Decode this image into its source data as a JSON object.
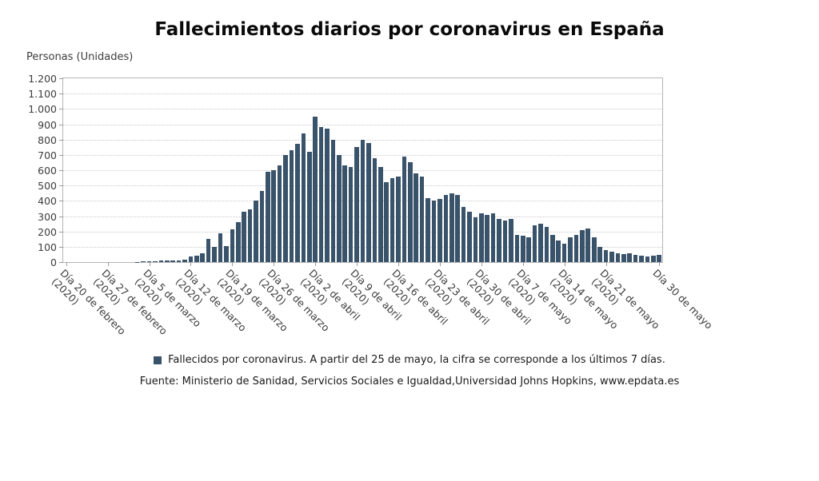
{
  "chart_data": {
    "type": "bar",
    "title": "Fallecimientos diarios por coronavirus en España",
    "ylabel": "Personas (Unidades)",
    "xlabel": "",
    "ylim": [
      0,
      1200
    ],
    "y_tick_step": 100,
    "y_tick_labels_top_down": [
      "1.200",
      "1.100",
      "1.000",
      "900",
      "800",
      "700",
      "600",
      "500",
      "400",
      "300",
      "200",
      "100",
      "0"
    ],
    "grid": "dotted-horizontal",
    "legend_position": "bottom",
    "start_date": "Día 20 de febrero (2020)",
    "end_date": "Día 30 de mayo (2020)",
    "series_name": "Fallecidos por coronavirus",
    "values": [
      0,
      0,
      0,
      0,
      0,
      0,
      0,
      0,
      0,
      0,
      0,
      0,
      2,
      3,
      4,
      5,
      8,
      10,
      12,
      10,
      15,
      35,
      40,
      55,
      150,
      100,
      190,
      105,
      215,
      260,
      330,
      345,
      400,
      465,
      590,
      600,
      630,
      700,
      730,
      770,
      840,
      720,
      950,
      880,
      870,
      800,
      700,
      630,
      620,
      750,
      800,
      780,
      680,
      620,
      520,
      550,
      560,
      690,
      650,
      580,
      560,
      420,
      400,
      410,
      440,
      450,
      440,
      360,
      330,
      290,
      320,
      310,
      320,
      280,
      270,
      280,
      180,
      170,
      160,
      240,
      250,
      230,
      180,
      140,
      120,
      160,
      180,
      210,
      220,
      160,
      100,
      80,
      70,
      60,
      50,
      55,
      45,
      40,
      35,
      40,
      45
    ],
    "x_ticks": [
      {
        "index": 0,
        "line1": "Día 20 de febrero",
        "line2": "(2020)"
      },
      {
        "index": 7,
        "line1": "Día 27 de febrero",
        "line2": "(2020)"
      },
      {
        "index": 14,
        "line1": "Día 5 de marzo",
        "line2": "(2020)"
      },
      {
        "index": 21,
        "line1": "Día 12 de marzo",
        "line2": "(2020)"
      },
      {
        "index": 28,
        "line1": "Día 19 de marzo",
        "line2": "(2020)"
      },
      {
        "index": 35,
        "line1": "Día 26 de marzo",
        "line2": "(2020)"
      },
      {
        "index": 42,
        "line1": "Día 2 de abril",
        "line2": "(2020)"
      },
      {
        "index": 49,
        "line1": "Día 9 de abril",
        "line2": "(2020)"
      },
      {
        "index": 56,
        "line1": "Día 16 de abril",
        "line2": "(2020)"
      },
      {
        "index": 63,
        "line1": "Día 23 de abril",
        "line2": "(2020)"
      },
      {
        "index": 70,
        "line1": "Día 30 de abril",
        "line2": "(2020)"
      },
      {
        "index": 77,
        "line1": "Día 7 de mayo",
        "line2": "(2020)"
      },
      {
        "index": 84,
        "line1": "Día 14 de mayo",
        "line2": "(2020)"
      },
      {
        "index": 91,
        "line1": "Día 21 de mayo",
        "line2": "(2020)"
      },
      {
        "index": 100,
        "line1": "Día 30 de mayo",
        "line2": ""
      }
    ]
  },
  "legend": {
    "label": "Fallecidos por coronavirus. A partir del 25 de mayo, la cifra se corresponde a los últimos 7 días."
  },
  "source": {
    "text": "Fuente: Ministerio de Sanidad, Servicios Sociales e Igualdad,Universidad Johns Hopkins, www.epdata.es"
  },
  "colors": {
    "bar": "#39536b",
    "grid": "#c9c9c9",
    "plot_border": "#b6b6b6",
    "text": "#3c3c3c",
    "title": "#0a0a0a"
  }
}
